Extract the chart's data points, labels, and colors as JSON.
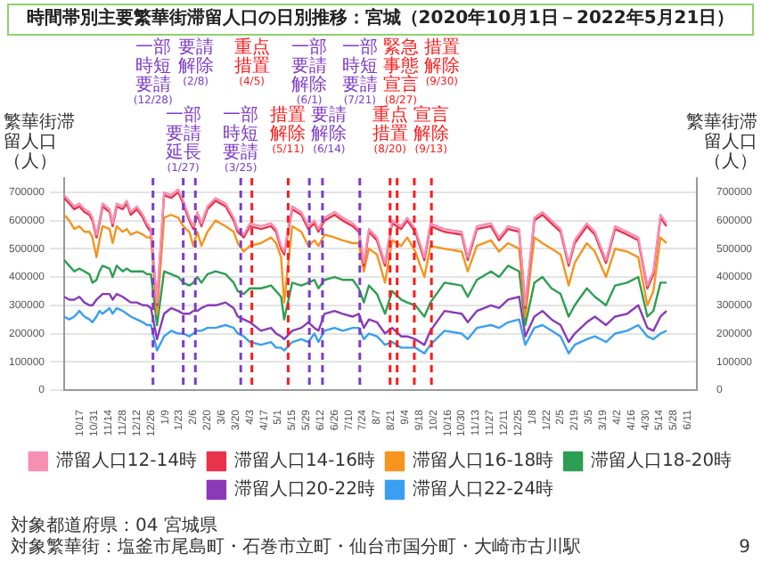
{
  "chart_data": {
    "type": "line",
    "title": "時間帯別主要繁華街滞留人口の日別推移：宮城（2020年10月1日－2022年5月21日）",
    "ylabel": "繁華街滞留人口（人）",
    "y2label": "繁華街滞留人口（人）",
    "x": [
      "2020-10-01",
      "2020-10-06",
      "2020-10-11",
      "2020-10-16",
      "2020-10-21",
      "2020-10-26",
      "2020-10-29",
      "2020-11-02",
      "2020-11-05",
      "2020-11-08",
      "2020-11-15",
      "2020-11-18",
      "2020-11-22",
      "2020-11-28",
      "2020-12-02",
      "2020-12-06",
      "2020-12-12",
      "2020-12-18",
      "2020-12-22",
      "2020-12-26",
      "2021-01-01",
      "2021-01-08",
      "2021-01-15",
      "2021-01-22",
      "2021-01-27",
      "2021-02-02",
      "2021-02-06",
      "2021-02-10",
      "2021-02-14",
      "2021-02-20",
      "2021-02-28",
      "2021-03-10",
      "2021-03-18",
      "2021-03-22",
      "2021-03-28",
      "2021-04-03",
      "2021-04-14",
      "2021-04-24",
      "2021-04-29",
      "2021-05-04",
      "2021-05-07",
      "2021-05-15",
      "2021-05-24",
      "2021-05-31",
      "2021-06-06",
      "2021-06-10",
      "2021-06-16",
      "2021-06-26",
      "2021-07-04",
      "2021-07-14",
      "2021-07-20",
      "2021-07-25",
      "2021-07-30",
      "2021-08-07",
      "2021-08-15",
      "2021-08-22",
      "2021-08-31",
      "2021-09-06",
      "2021-09-14",
      "2021-09-23",
      "2021-09-29",
      "2021-10-13",
      "2021-10-30",
      "2021-11-05",
      "2021-11-14",
      "2021-11-28",
      "2021-12-06",
      "2021-12-15",
      "2021-12-26",
      "2022-01-01",
      "2022-01-10",
      "2022-01-18",
      "2022-01-27",
      "2022-02-05",
      "2022-02-13",
      "2022-02-19",
      "2022-03-03",
      "2022-03-11",
      "2022-03-22",
      "2022-03-31",
      "2022-04-12",
      "2022-04-23",
      "2022-05-02",
      "2022-05-08",
      "2022-05-15",
      "2022-05-21"
    ],
    "series": [
      {
        "name": "滞留人口12-14時",
        "color": "#f78fb3",
        "values": [
          690000,
          670000,
          650000,
          660000,
          640000,
          630000,
          610000,
          550000,
          600000,
          660000,
          640000,
          590000,
          660000,
          650000,
          670000,
          630000,
          650000,
          620000,
          590000,
          570000,
          310000,
          700000,
          690000,
          710000,
          670000,
          610000,
          580000,
          630000,
          590000,
          650000,
          680000,
          660000,
          610000,
          570000,
          550000,
          590000,
          580000,
          590000,
          570000,
          510000,
          490000,
          650000,
          630000,
          580000,
          600000,
          570000,
          610000,
          630000,
          610000,
          590000,
          570000,
          450000,
          570000,
          540000,
          450000,
          600000,
          580000,
          610000,
          570000,
          470000,
          590000,
          570000,
          560000,
          470000,
          580000,
          590000,
          540000,
          580000,
          570000,
          300000,
          610000,
          630000,
          600000,
          570000,
          450000,
          530000,
          590000,
          560000,
          460000,
          580000,
          560000,
          540000,
          370000,
          420000,
          620000,
          590000
        ]
      },
      {
        "name": "滞留人口14-16時",
        "color": "#e8334a",
        "values": [
          680000,
          660000,
          640000,
          650000,
          630000,
          620000,
          600000,
          540000,
          590000,
          650000,
          630000,
          580000,
          650000,
          640000,
          660000,
          620000,
          640000,
          610000,
          580000,
          560000,
          300000,
          690000,
          680000,
          700000,
          660000,
          600000,
          570000,
          620000,
          580000,
          640000,
          670000,
          650000,
          600000,
          560000,
          540000,
          580000,
          570000,
          580000,
          560000,
          500000,
          480000,
          640000,
          620000,
          570000,
          590000,
          560000,
          600000,
          620000,
          600000,
          580000,
          560000,
          440000,
          560000,
          530000,
          440000,
          590000,
          570000,
          600000,
          560000,
          460000,
          580000,
          560000,
          550000,
          460000,
          570000,
          580000,
          530000,
          570000,
          560000,
          290000,
          600000,
          620000,
          590000,
          560000,
          440000,
          520000,
          580000,
          550000,
          450000,
          570000,
          550000,
          530000,
          360000,
          410000,
          610000,
          580000
        ]
      },
      {
        "name": "滞留人口16-18時",
        "color": "#f7941d",
        "values": [
          620000,
          600000,
          570000,
          580000,
          560000,
          560000,
          540000,
          470000,
          530000,
          580000,
          570000,
          520000,
          580000,
          560000,
          570000,
          550000,
          560000,
          550000,
          540000,
          540000,
          270000,
          610000,
          620000,
          610000,
          580000,
          560000,
          510000,
          560000,
          510000,
          560000,
          600000,
          580000,
          560000,
          520000,
          490000,
          510000,
          520000,
          540000,
          520000,
          470000,
          310000,
          580000,
          560000,
          510000,
          530000,
          510000,
          550000,
          540000,
          530000,
          520000,
          520000,
          420000,
          500000,
          480000,
          380000,
          530000,
          510000,
          540000,
          490000,
          400000,
          510000,
          500000,
          490000,
          420000,
          510000,
          530000,
          490000,
          520000,
          500000,
          260000,
          540000,
          520000,
          500000,
          480000,
          370000,
          450000,
          520000,
          490000,
          400000,
          500000,
          490000,
          470000,
          300000,
          350000,
          540000,
          520000
        ]
      },
      {
        "name": "滞留人口18-20時",
        "color": "#2e9e52",
        "values": [
          460000,
          440000,
          420000,
          430000,
          420000,
          410000,
          380000,
          390000,
          420000,
          440000,
          430000,
          400000,
          440000,
          420000,
          430000,
          420000,
          420000,
          420000,
          410000,
          410000,
          230000,
          420000,
          410000,
          400000,
          380000,
          370000,
          380000,
          400000,
          380000,
          410000,
          420000,
          410000,
          380000,
          350000,
          340000,
          360000,
          360000,
          370000,
          350000,
          330000,
          250000,
          380000,
          370000,
          380000,
          390000,
          360000,
          390000,
          400000,
          390000,
          390000,
          360000,
          310000,
          370000,
          340000,
          270000,
          350000,
          320000,
          310000,
          300000,
          260000,
          310000,
          380000,
          370000,
          330000,
          390000,
          420000,
          400000,
          440000,
          420000,
          230000,
          380000,
          400000,
          360000,
          340000,
          260000,
          300000,
          360000,
          330000,
          300000,
          370000,
          380000,
          400000,
          260000,
          280000,
          380000,
          380000
        ]
      },
      {
        "name": "滞留人口20-22時",
        "color": "#8a3ab9",
        "values": [
          330000,
          320000,
          320000,
          330000,
          310000,
          300000,
          300000,
          320000,
          330000,
          340000,
          340000,
          320000,
          340000,
          330000,
          320000,
          310000,
          310000,
          300000,
          300000,
          290000,
          180000,
          270000,
          290000,
          280000,
          270000,
          270000,
          280000,
          280000,
          290000,
          300000,
          300000,
          310000,
          290000,
          260000,
          250000,
          240000,
          210000,
          220000,
          200000,
          190000,
          180000,
          210000,
          220000,
          240000,
          220000,
          210000,
          270000,
          280000,
          270000,
          260000,
          270000,
          220000,
          250000,
          240000,
          200000,
          220000,
          190000,
          190000,
          180000,
          160000,
          210000,
          280000,
          270000,
          240000,
          280000,
          300000,
          290000,
          320000,
          330000,
          190000,
          260000,
          280000,
          250000,
          230000,
          170000,
          200000,
          240000,
          260000,
          230000,
          260000,
          270000,
          300000,
          220000,
          210000,
          260000,
          280000
        ]
      },
      {
        "name": "滞留人口22-24時",
        "color": "#3a9ff0",
        "values": [
          260000,
          250000,
          260000,
          280000,
          260000,
          250000,
          240000,
          260000,
          280000,
          270000,
          290000,
          270000,
          290000,
          280000,
          270000,
          260000,
          250000,
          240000,
          230000,
          230000,
          140000,
          190000,
          210000,
          200000,
          200000,
          190000,
          200000,
          210000,
          210000,
          220000,
          220000,
          230000,
          220000,
          200000,
          190000,
          170000,
          160000,
          170000,
          150000,
          150000,
          140000,
          170000,
          180000,
          170000,
          200000,
          170000,
          210000,
          220000,
          210000,
          220000,
          220000,
          180000,
          200000,
          190000,
          160000,
          170000,
          150000,
          150000,
          150000,
          130000,
          160000,
          210000,
          200000,
          180000,
          220000,
          230000,
          220000,
          240000,
          250000,
          160000,
          220000,
          230000,
          210000,
          190000,
          130000,
          160000,
          180000,
          190000,
          170000,
          200000,
          210000,
          230000,
          190000,
          180000,
          200000,
          210000
        ]
      }
    ],
    "xlim": [
      "2020-10-01",
      "2022-06-20"
    ],
    "xticks": [
      {
        "value": "2020-10-17",
        "label": "10/17"
      },
      {
        "value": "2020-10-31",
        "label": "10/31"
      },
      {
        "value": "2020-11-14",
        "label": "11/14"
      },
      {
        "value": "2020-11-28",
        "label": "11/28"
      },
      {
        "value": "2020-12-12",
        "label": "12/12"
      },
      {
        "value": "2020-12-26",
        "label": "12/26"
      },
      {
        "value": "2021-01-09",
        "label": "1/9"
      },
      {
        "value": "2021-01-23",
        "label": "1/23"
      },
      {
        "value": "2021-02-06",
        "label": "2/6"
      },
      {
        "value": "2021-02-20",
        "label": "2/20"
      },
      {
        "value": "2021-03-06",
        "label": "3/6"
      },
      {
        "value": "2021-03-20",
        "label": "3/20"
      },
      {
        "value": "2021-04-03",
        "label": "4/3"
      },
      {
        "value": "2021-04-17",
        "label": "4/17"
      },
      {
        "value": "2021-05-01",
        "label": "5/1"
      },
      {
        "value": "2021-05-15",
        "label": "5/15"
      },
      {
        "value": "2021-05-29",
        "label": "5/29"
      },
      {
        "value": "2021-06-12",
        "label": "6/12"
      },
      {
        "value": "2021-06-26",
        "label": "6/26"
      },
      {
        "value": "2021-07-10",
        "label": "7/10"
      },
      {
        "value": "2021-07-24",
        "label": "7/24"
      },
      {
        "value": "2021-08-07",
        "label": "8/7"
      },
      {
        "value": "2021-08-21",
        "label": "8/21"
      },
      {
        "value": "2021-09-04",
        "label": "9/4"
      },
      {
        "value": "2021-09-18",
        "label": "9/18"
      },
      {
        "value": "2021-10-02",
        "label": "10/2"
      },
      {
        "value": "2021-10-16",
        "label": "10/16"
      },
      {
        "value": "2021-10-30",
        "label": "10/30"
      },
      {
        "value": "2021-11-13",
        "label": "11/13"
      },
      {
        "value": "2021-11-27",
        "label": "11/27"
      },
      {
        "value": "2021-12-11",
        "label": "12/11"
      },
      {
        "value": "2021-12-25",
        "label": "12/25"
      },
      {
        "value": "2022-01-08",
        "label": "1/8"
      },
      {
        "value": "2022-01-22",
        "label": "1/22"
      },
      {
        "value": "2022-02-05",
        "label": "2/5"
      },
      {
        "value": "2022-02-19",
        "label": "2/19"
      },
      {
        "value": "2022-03-05",
        "label": "3/5"
      },
      {
        "value": "2022-03-19",
        "label": "3/19"
      },
      {
        "value": "2022-04-02",
        "label": "4/2"
      },
      {
        "value": "2022-04-16",
        "label": "4/16"
      },
      {
        "value": "2022-04-30",
        "label": "4/30"
      },
      {
        "value": "2022-05-14",
        "label": "5/14"
      },
      {
        "value": "2022-05-28",
        "label": "5/28"
      },
      {
        "value": "2022-06-11",
        "label": "6/11"
      }
    ],
    "ylim": [
      0,
      750000
    ],
    "yticks": [
      0,
      100000,
      200000,
      300000,
      400000,
      500000,
      600000,
      700000
    ],
    "y2lim": [
      0,
      750000
    ],
    "y2ticks": [
      0,
      100000,
      200000,
      300000,
      400000,
      500000,
      600000,
      700000
    ],
    "ref_lines": [
      {
        "axis": "x",
        "value": "2020-12-28",
        "label": "一部時短要請(12/28)",
        "color": "#7d3cc8",
        "line_style": "dashed"
      },
      {
        "axis": "x",
        "value": "2021-01-27",
        "label": "一部要請延長(1/27)",
        "color": "#7d3cc8",
        "line_style": "dashed"
      },
      {
        "axis": "x",
        "value": "2021-02-08",
        "label": "要請解除(2/8)",
        "color": "#7d3cc8",
        "line_style": "dashed"
      },
      {
        "axis": "x",
        "value": "2021-03-25",
        "label": "一部時短要請(3/25)",
        "color": "#7d3cc8",
        "line_style": "dashed"
      },
      {
        "axis": "x",
        "value": "2021-04-05",
        "label": "重点措置(4/5)",
        "color": "#ff1a1a",
        "line_style": "dashed"
      },
      {
        "axis": "x",
        "value": "2021-05-11",
        "label": "措置解除(5/11)",
        "color": "#ff1a1a",
        "line_style": "dashed"
      },
      {
        "axis": "x",
        "value": "2021-06-01",
        "label": "一部要請解除(6/1)",
        "color": "#7d3cc8",
        "line_style": "dashed"
      },
      {
        "axis": "x",
        "value": "2021-06-14",
        "label": "要請解除(6/14)",
        "color": "#7d3cc8",
        "line_style": "dashed"
      },
      {
        "axis": "x",
        "value": "2021-07-21",
        "label": "一部時短要請(7/21)",
        "color": "#7d3cc8",
        "line_style": "dashed"
      },
      {
        "axis": "x",
        "value": "2021-08-20",
        "label": "重点措置(8/20)",
        "color": "#ff1a1a",
        "line_style": "dashed"
      },
      {
        "axis": "x",
        "value": "2021-08-27",
        "label": "緊急事態宣言(8/27)",
        "color": "#ff1a1a",
        "line_style": "dashed"
      },
      {
        "axis": "x",
        "value": "2021-09-13",
        "label": "宣言解除(9/13)",
        "color": "#ff1a1a",
        "line_style": "dashed"
      },
      {
        "axis": "x",
        "value": "2021-09-30",
        "label": "措置解除(9/30)",
        "color": "#ff1a1a",
        "line_style": "dashed"
      }
    ],
    "annotations": [
      "対象都道府県：04 宮城県",
      "対象繁華街：塩釜市尾島町・石巻市立町・仙台市国分町・大崎市古川駅",
      "9"
    ],
    "grid": "y",
    "legend": "bottom",
    "marker": "none"
  }
}
